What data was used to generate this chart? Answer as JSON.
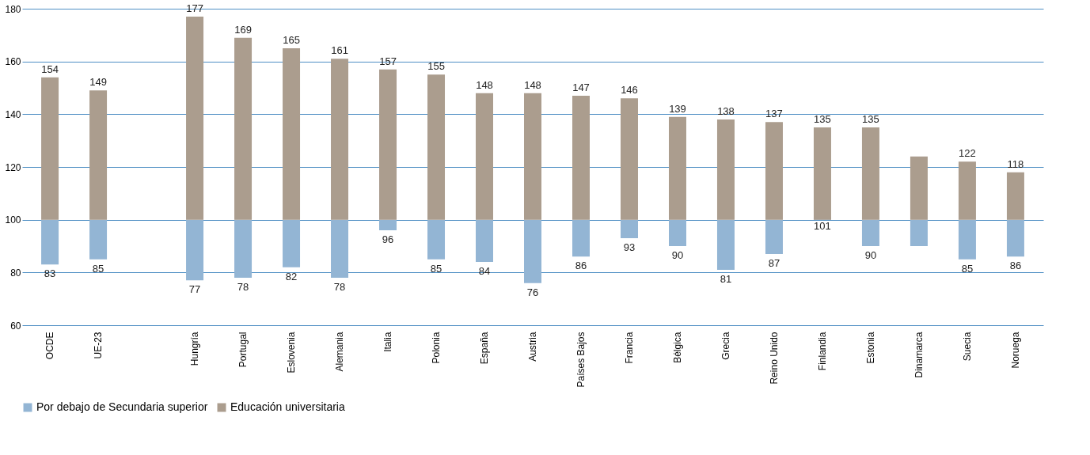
{
  "chart_data": {
    "type": "bar",
    "categories": [
      "OCDE",
      "UE-23",
      null,
      "Hungría",
      "Portugal",
      "Eslovenia",
      "Alemania",
      "Italia",
      "Polonia",
      "España",
      "Austria",
      "Países Bajos",
      "Francia",
      "Bélgica",
      "Grecia",
      "Reino Unido",
      "Finlandia",
      "Estonia",
      "Dinamarca",
      "Suecia",
      "Noruega"
    ],
    "series": [
      {
        "name": "Por debajo de Secundaria superior",
        "color": "#93b5d4",
        "base": [
          100,
          100,
          null,
          100,
          100,
          100,
          100,
          100,
          100,
          100,
          100,
          100,
          100,
          100,
          100,
          100,
          100,
          100,
          100,
          100,
          100
        ],
        "values": [
          -17,
          -15,
          null,
          -23,
          -22,
          -18,
          -22,
          -4,
          -15,
          -16,
          -24,
          -14,
          -7,
          -10,
          -19,
          -13,
          1,
          -10,
          -10,
          -15,
          -14
        ],
        "value_labels": [
          "83",
          "85",
          null,
          "77",
          "78",
          "82",
          "78",
          "96",
          "85",
          "84",
          "76",
          "86",
          "93",
          "90",
          "81",
          "87",
          "101",
          "90",
          null,
          "85",
          "86"
        ]
      },
      {
        "name": "Educación universitaria",
        "color": "#ab9d8e",
        "base": [
          100,
          100,
          null,
          100,
          100,
          100,
          100,
          100,
          100,
          100,
          100,
          100,
          100,
          100,
          100,
          100,
          100,
          100,
          100,
          100,
          100
        ],
        "values": [
          54,
          49,
          null,
          77,
          69,
          65,
          61,
          57,
          55,
          48,
          48,
          47,
          46,
          39,
          38,
          37,
          35,
          35,
          24,
          22,
          18
        ],
        "value_labels": [
          "154",
          "149",
          null,
          "177",
          "169",
          "165",
          "161",
          "157",
          "155",
          "148",
          "148",
          "147",
          "146",
          "139",
          "138",
          "137",
          "135",
          "135",
          null,
          "122",
          "118"
        ]
      }
    ],
    "ylim": [
      60,
      180
    ],
    "yticks": [
      60,
      80,
      100,
      120,
      140,
      160,
      180
    ],
    "grid": "y",
    "legend": "bottom"
  }
}
